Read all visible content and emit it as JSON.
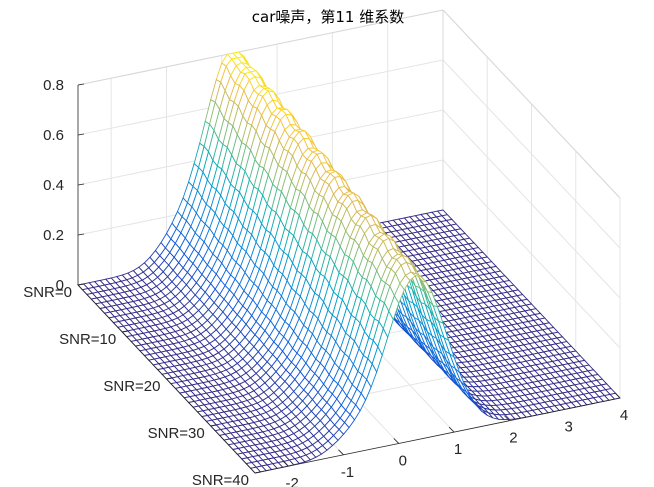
{
  "chart_data": {
    "type": "surface-mesh",
    "title": "car噪声，第11 维系数",
    "xlabel": "",
    "ylabel": "",
    "zlabel": "",
    "x_ticks": [
      "-2",
      "-1",
      "0",
      "1",
      "2",
      "3",
      "4"
    ],
    "x_tick_values": [
      -2,
      -1,
      0,
      1,
      2,
      3,
      4
    ],
    "y_ticks": [
      "SNR=0",
      "SNR=10",
      "SNR=20",
      "SNR=30",
      "SNR=40"
    ],
    "y_tick_values": [
      0,
      10,
      20,
      30,
      40
    ],
    "z_ticks": [
      "0",
      "0.2",
      "0.4",
      "0.6",
      "0.8"
    ],
    "z_tick_values": [
      0,
      0.2,
      0.4,
      0.6,
      0.8
    ],
    "xlim": [
      -2.6,
      4
    ],
    "ylim": [
      0,
      40
    ],
    "zlim": [
      0,
      0.8
    ],
    "colormap": "parula",
    "grid": true,
    "surface_profile": {
      "x": [
        -2.6,
        -2.0,
        -1.5,
        -1.0,
        -0.5,
        -0.2,
        0.0,
        0.2,
        0.5,
        1.0,
        1.5,
        2.0,
        2.5,
        3.0,
        3.5,
        4.0
      ],
      "peak_position_at_snr0": 0.2,
      "peak_position_at_snr40": 0.3,
      "peak_height_at_snr0": 0.82,
      "peak_height_at_snr40": 0.66,
      "peak_width": 0.55
    }
  },
  "colors": {
    "axis": "#262626",
    "grid": "#e5e5e5",
    "background": "#ffffff"
  }
}
